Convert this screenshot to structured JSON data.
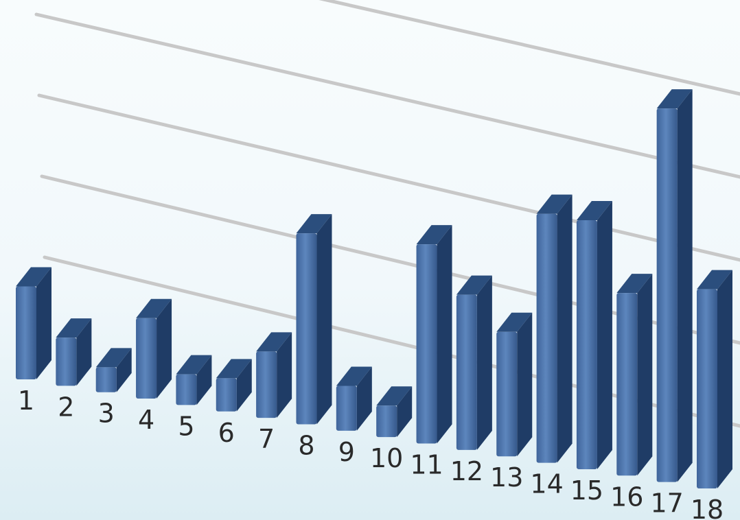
{
  "chart_data": {
    "type": "bar",
    "style": "3d",
    "categories": [
      "1",
      "2",
      "3",
      "4",
      "5",
      "6",
      "7",
      "8",
      "9",
      "10",
      "11",
      "12",
      "13",
      "14",
      "15",
      "16",
      "17",
      "18"
    ],
    "values": [
      11.2,
      5.8,
      3.0,
      9.7,
      3.7,
      4.0,
      8.0,
      23.0,
      5.4,
      3.8,
      24.0,
      18.7,
      15.0,
      30.0,
      30.0,
      22.0,
      45.0,
      24.0
    ],
    "ylim": [
      0,
      50
    ],
    "grid": true,
    "legend": "none",
    "title": "",
    "xlabel": "",
    "ylabel": "",
    "colors": {
      "bar": "#4a72a8",
      "bar_side": "#1f3c66",
      "gridline": "#c8c8c8"
    }
  }
}
